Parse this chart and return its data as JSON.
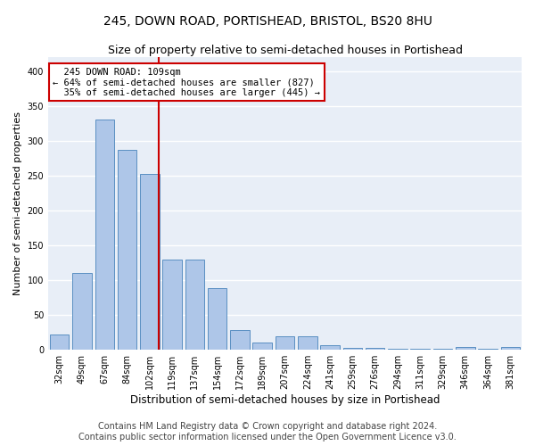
{
  "title_line1": "245, DOWN ROAD, PORTISHEAD, BRISTOL, BS20 8HU",
  "title_line2": "Size of property relative to semi-detached houses in Portishead",
  "xlabel": "Distribution of semi-detached houses by size in Portishead",
  "ylabel": "Number of semi-detached properties",
  "footer_line1": "Contains HM Land Registry data © Crown copyright and database right 2024.",
  "footer_line2": "Contains public sector information licensed under the Open Government Licence v3.0.",
  "bar_labels": [
    "32sqm",
    "49sqm",
    "67sqm",
    "84sqm",
    "102sqm",
    "119sqm",
    "137sqm",
    "154sqm",
    "172sqm",
    "189sqm",
    "207sqm",
    "224sqm",
    "241sqm",
    "259sqm",
    "276sqm",
    "294sqm",
    "311sqm",
    "329sqm",
    "346sqm",
    "364sqm",
    "381sqm"
  ],
  "bar_values": [
    22,
    110,
    330,
    287,
    252,
    130,
    130,
    89,
    29,
    11,
    19,
    19,
    7,
    3,
    3,
    2,
    1,
    1,
    4,
    1,
    4
  ],
  "bar_color": "#aec6e8",
  "bar_edge_color": "#5a8fc2",
  "property_label": "245 DOWN ROAD: 109sqm",
  "pct_smaller": 64,
  "count_smaller": 827,
  "pct_larger": 35,
  "count_larger": 445,
  "vline_color": "#cc0000",
  "annotation_border_color": "#cc0000",
  "vline_x": 4.41,
  "ylim": [
    0,
    420
  ],
  "yticks": [
    0,
    50,
    100,
    150,
    200,
    250,
    300,
    350,
    400
  ],
  "background_color": "#e8eef7",
  "grid_color": "#ffffff",
  "title1_fontsize": 10,
  "title2_fontsize": 9,
  "xlabel_fontsize": 8.5,
  "ylabel_fontsize": 8,
  "tick_fontsize": 7,
  "footer_fontsize": 7,
  "annot_fontsize": 7.5
}
